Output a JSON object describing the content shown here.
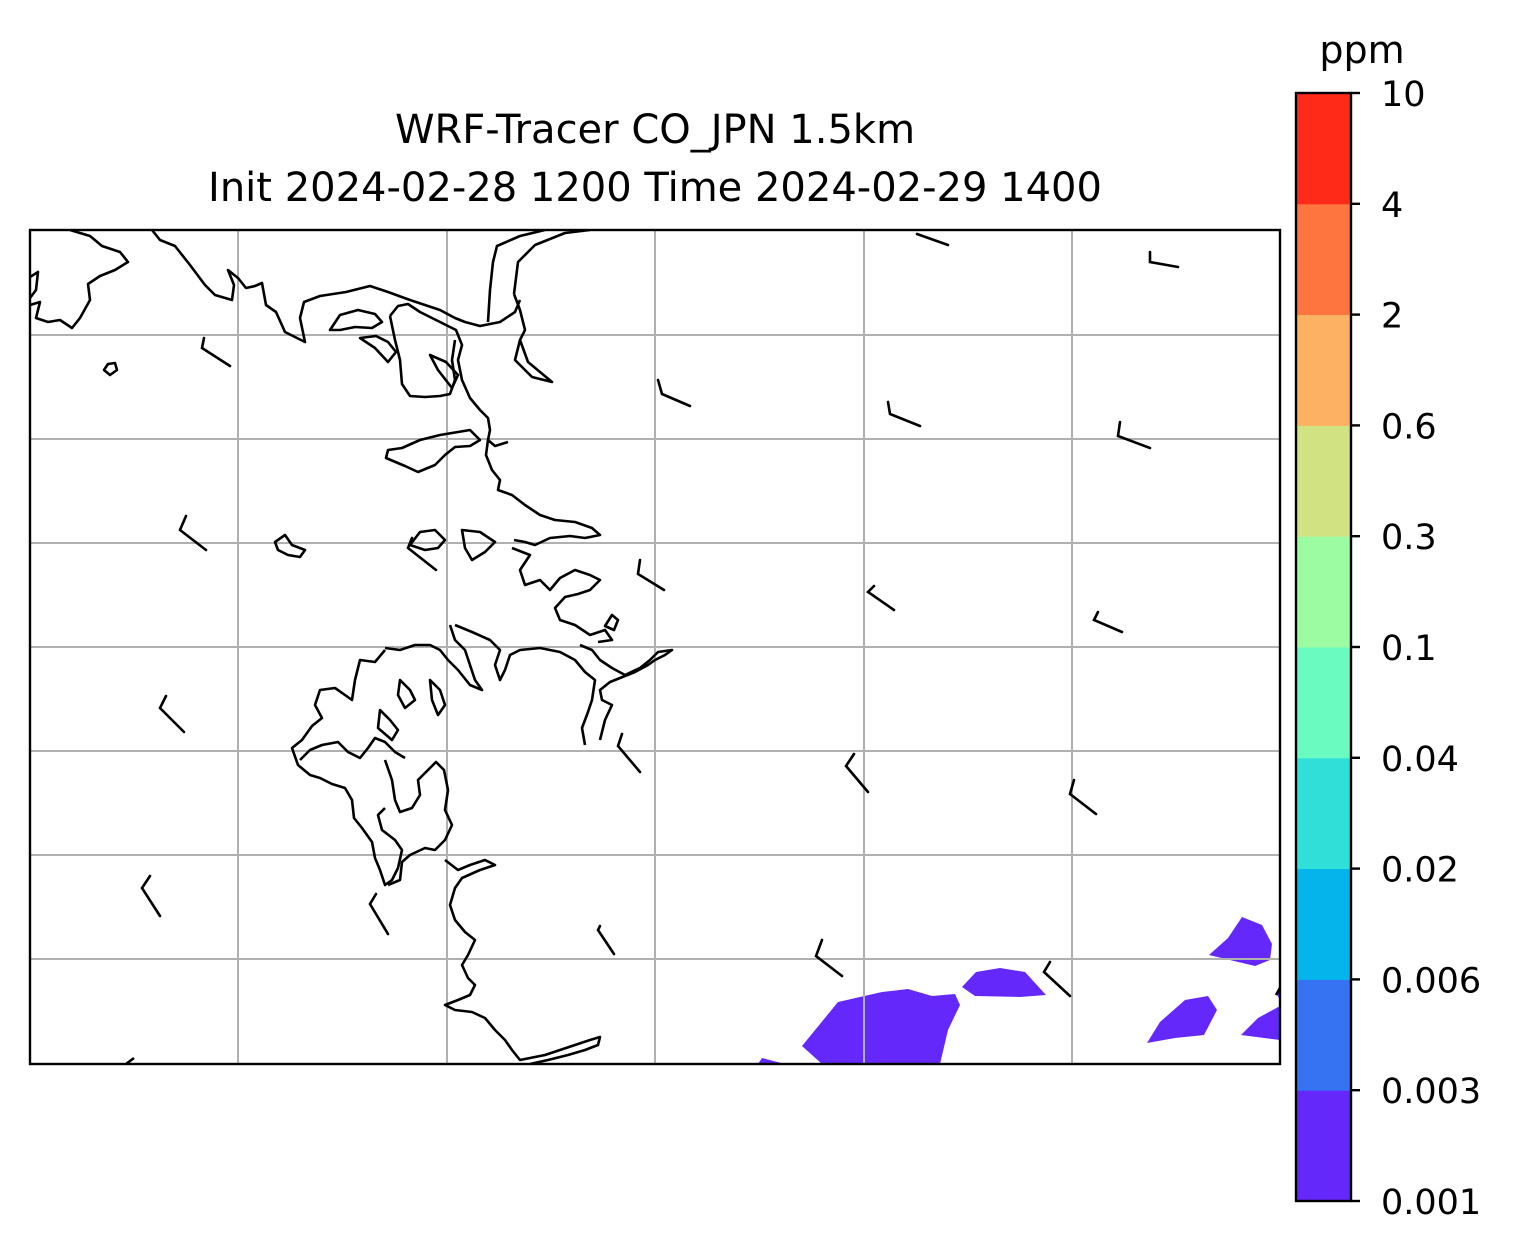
{
  "title": {
    "line1": "WRF-Tracer CO_JPN 1.5km",
    "line2": "Init 2024-02-28 1200 Time 2024-02-29 1400"
  },
  "colorbar": {
    "unit": "ppm",
    "levels": [
      "0.001",
      "0.003",
      "0.006",
      "0.02",
      "0.04",
      "0.1",
      "0.3",
      "0.6",
      "2",
      "4",
      "10"
    ],
    "colors": [
      "#6428fb",
      "#3573f3",
      "#04b4eb",
      "#30e0d8",
      "#6afbc0",
      "#9cfca2",
      "#d1e283",
      "#fcb262",
      "#ff7540",
      "#ff2a18"
    ]
  },
  "map": {
    "gridlines": true,
    "coastline_color": "#000000",
    "grid_color": "#b0b0b0",
    "field_color": "#6428fb",
    "field_level": "0.001–0.003 ppm",
    "wind_barbs": true
  }
}
